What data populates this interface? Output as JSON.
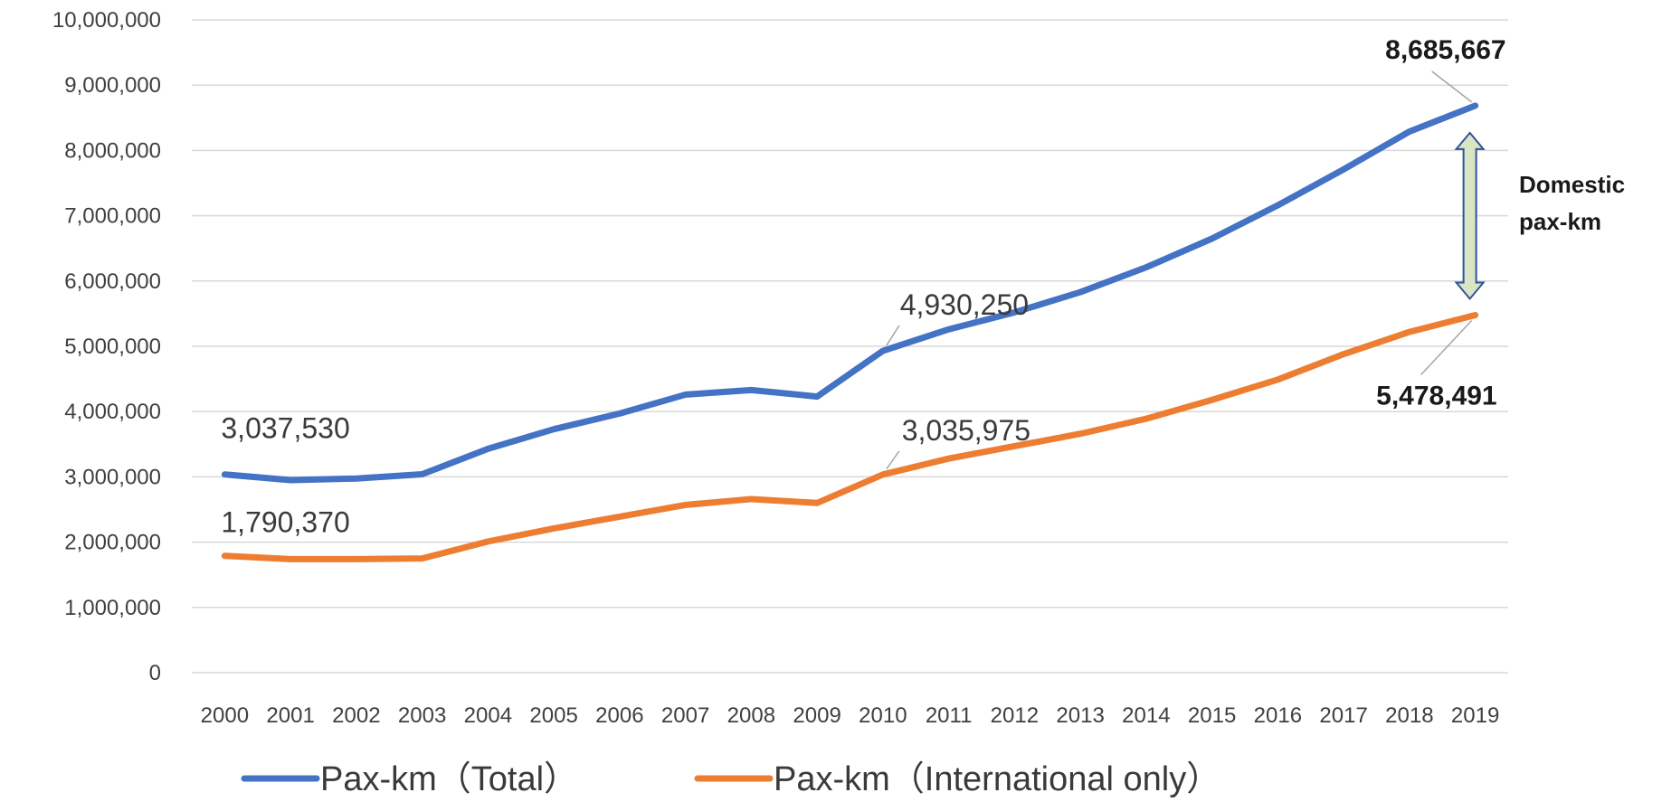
{
  "chart_data": {
    "type": "line",
    "categories": [
      "2000",
      "2001",
      "2002",
      "2003",
      "2004",
      "2005",
      "2006",
      "2007",
      "2008",
      "2009",
      "2010",
      "2011",
      "2012",
      "2013",
      "2014",
      "2015",
      "2016",
      "2017",
      "2018",
      "2019"
    ],
    "series": [
      {
        "name": "Pax-km（Total）",
        "color": "#4472C4",
        "values": [
          3037530,
          2950000,
          2975000,
          3040000,
          3430000,
          3730000,
          3970000,
          4260000,
          4330000,
          4230000,
          4930250,
          5260000,
          5520000,
          5830000,
          6210000,
          6650000,
          7160000,
          7710000,
          8290000,
          8685667
        ]
      },
      {
        "name": "Pax-km（International only）",
        "color": "#ED7D31",
        "values": [
          1790370,
          1740000,
          1740000,
          1750000,
          2010000,
          2210000,
          2390000,
          2570000,
          2660000,
          2600000,
          3035975,
          3280000,
          3470000,
          3660000,
          3890000,
          4180000,
          4490000,
          4880000,
          5220000,
          5478491
        ]
      }
    ],
    "ylim": [
      0,
      10000000
    ],
    "y_ticks": [
      {
        "value": 0,
        "label": "0"
      },
      {
        "value": 1000000,
        "label": "1,000,000"
      },
      {
        "value": 2000000,
        "label": "2,000,000"
      },
      {
        "value": 3000000,
        "label": "3,000,000"
      },
      {
        "value": 4000000,
        "label": "4,000,000"
      },
      {
        "value": 5000000,
        "label": "5,000,000"
      },
      {
        "value": 6000000,
        "label": "6,000,000"
      },
      {
        "value": 7000000,
        "label": "7,000,000"
      },
      {
        "value": 8000000,
        "label": "8,000,000"
      },
      {
        "value": 9000000,
        "label": "9,000,000"
      },
      {
        "value": 10000000,
        "label": "10,000,000"
      }
    ],
    "grid": true,
    "legend_position": "bottom",
    "annotations": [
      {
        "series": 0,
        "index": 0,
        "text": "3,037,530",
        "bold": false
      },
      {
        "series": 1,
        "index": 0,
        "text": "1,790,370",
        "bold": false
      },
      {
        "series": 0,
        "index": 10,
        "text": "4,930,250",
        "bold": false
      },
      {
        "series": 1,
        "index": 10,
        "text": "3,035,975",
        "bold": false
      },
      {
        "series": 0,
        "index": 19,
        "text": "8,685,667",
        "bold": true
      },
      {
        "series": 1,
        "index": 19,
        "text": "5,478,491",
        "bold": true
      }
    ],
    "gap_annotation": {
      "lines": [
        "Domestic",
        "pax-km"
      ],
      "arrow_fill": "#D9E5C3",
      "arrow_stroke": "#2F5597"
    }
  }
}
